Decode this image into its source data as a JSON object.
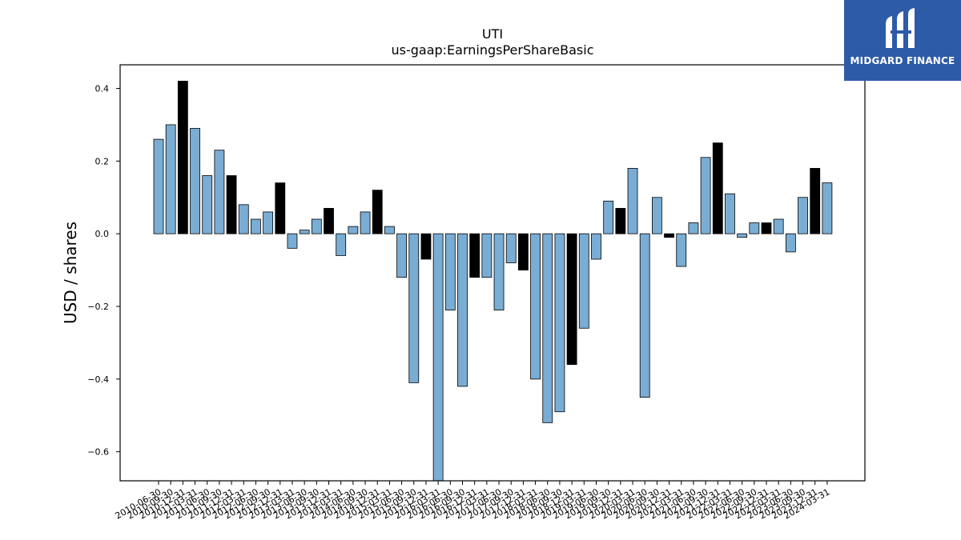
{
  "chart_data": {
    "type": "bar",
    "title": "UTI",
    "subtitle": "us-gaap:EarningsPerShareBasic",
    "ylabel": "USD / shares",
    "ylim": [
      -0.68,
      0.465
    ],
    "yticks": [
      -0.6,
      -0.4,
      -0.2,
      0.0,
      0.2,
      0.4
    ],
    "ytick_labels": [
      "−0.6",
      "−0.4",
      "−0.2",
      "0.0",
      "0.2",
      "0.4"
    ],
    "bar_colors": {
      "normal": "#7aadd4",
      "highlight": "#000000"
    },
    "grid": false,
    "categories": [
      "2010-06-30",
      "2010-09-30",
      "2010-12-31",
      "2011-03-31",
      "2011-06-30",
      "2011-09-30",
      "2011-12-31",
      "2012-03-31",
      "2012-06-30",
      "2012-09-30",
      "2012-12-31",
      "2013-03-31",
      "2013-06-30",
      "2013-09-30",
      "2013-12-31",
      "2014-03-31",
      "2014-06-30",
      "2014-09-30",
      "2014-12-31",
      "2015-03-31",
      "2015-06-30",
      "2015-09-30",
      "2015-12-31",
      "2016-03-31",
      "2016-06-30",
      "2016-09-30",
      "2016-12-31",
      "2017-03-31",
      "2017-06-30",
      "2017-09-30",
      "2017-12-31",
      "2018-03-31",
      "2018-06-30",
      "2018-09-30",
      "2018-12-31",
      "2019-03-31",
      "2019-06-30",
      "2019-09-30",
      "2019-12-31",
      "2020-03-31",
      "2020-06-30",
      "2020-09-30",
      "2020-12-31",
      "2021-03-31",
      "2021-06-30",
      "2021-09-30",
      "2021-12-31",
      "2022-03-31",
      "2022-06-30",
      "2022-09-30",
      "2022-12-31",
      "2023-03-31",
      "2023-06-30",
      "2023-09-30",
      "2023-12-31",
      "2024-03-31"
    ],
    "values": [
      0.26,
      0.3,
      0.42,
      0.29,
      0.16,
      0.23,
      0.16,
      0.08,
      0.04,
      0.06,
      0.14,
      -0.04,
      0.01,
      0.04,
      0.07,
      -0.06,
      0.02,
      0.06,
      0.12,
      0.02,
      -0.12,
      -0.41,
      -0.07,
      -0.72,
      -0.21,
      -0.42,
      -0.12,
      -0.12,
      -0.21,
      -0.08,
      -0.1,
      -0.4,
      -0.52,
      -0.49,
      -0.36,
      -0.26,
      -0.07,
      0.09,
      0.07,
      0.18,
      -0.45,
      0.1,
      -0.01,
      -0.09,
      0.03,
      0.21,
      0.25,
      0.11,
      -0.01,
      0.03,
      0.03,
      0.04,
      -0.05,
      0.1,
      0.18,
      0.14
    ],
    "highlight": [
      false,
      false,
      true,
      false,
      false,
      false,
      true,
      false,
      false,
      false,
      true,
      false,
      false,
      false,
      true,
      false,
      false,
      false,
      true,
      false,
      false,
      false,
      true,
      false,
      false,
      false,
      true,
      false,
      false,
      false,
      true,
      false,
      false,
      false,
      true,
      false,
      false,
      false,
      true,
      false,
      false,
      false,
      true,
      false,
      false,
      false,
      true,
      false,
      false,
      false,
      true,
      false,
      false,
      false,
      true,
      false
    ]
  },
  "logo": {
    "text": "MIDGARD FINANCE",
    "background": "#2d5ba8"
  }
}
